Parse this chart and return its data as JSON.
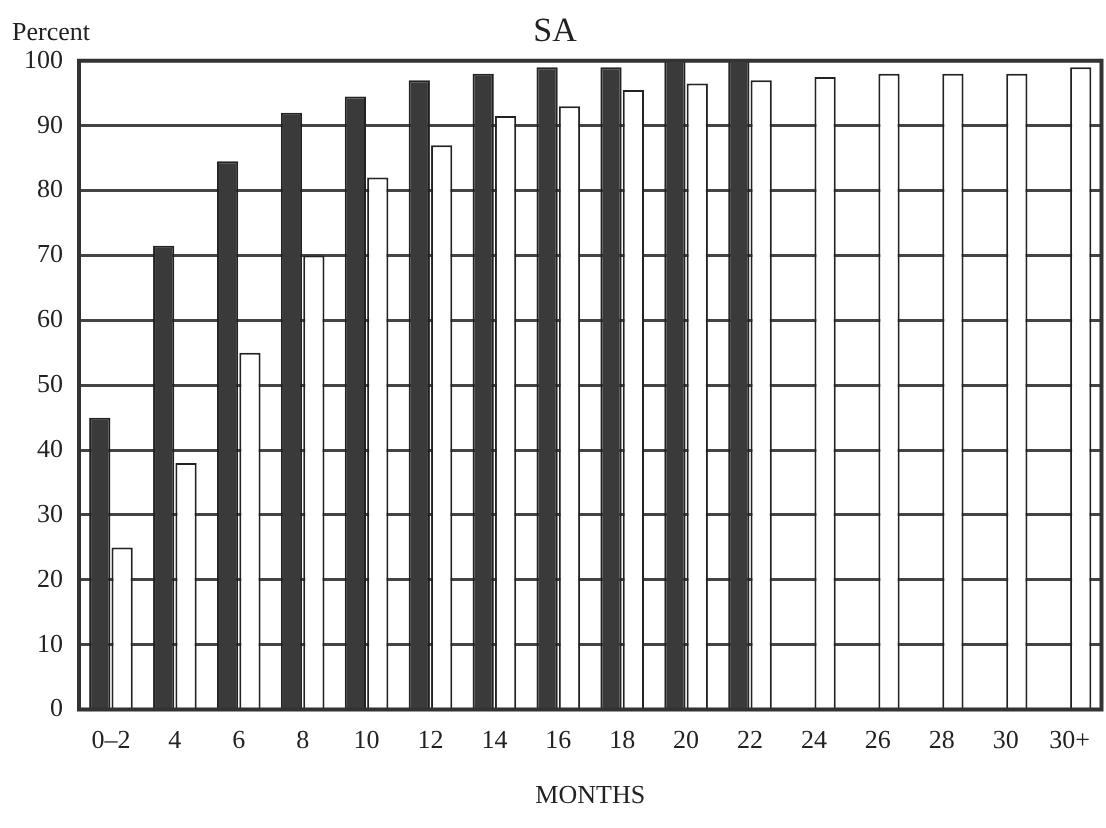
{
  "chart_data": {
    "type": "bar",
    "title": "SA",
    "ylabel": "Percent",
    "xlabel": "MONTHS",
    "categories": [
      "0–2",
      "4",
      "6",
      "8",
      "10",
      "12",
      "14",
      "16",
      "18",
      "20",
      "22",
      "24",
      "26",
      "28",
      "30",
      "30+"
    ],
    "series": [
      {
        "color": "#3a3a3a",
        "values": [
          45,
          71.5,
          84.5,
          92,
          94.5,
          97,
          98,
          99,
          99,
          100,
          100,
          null,
          null,
          null,
          null,
          null
        ]
      },
      {
        "color": "#ffffff",
        "values": [
          25,
          38,
          55,
          70,
          82,
          87,
          91.5,
          93,
          95.5,
          96.5,
          97,
          97.5,
          98,
          98,
          98,
          99
        ]
      }
    ],
    "ylim": [
      0,
      100
    ],
    "yticks": [
      0,
      10,
      20,
      30,
      40,
      50,
      60,
      70,
      80,
      90,
      100
    ],
    "grid": "y",
    "legend": false
  }
}
